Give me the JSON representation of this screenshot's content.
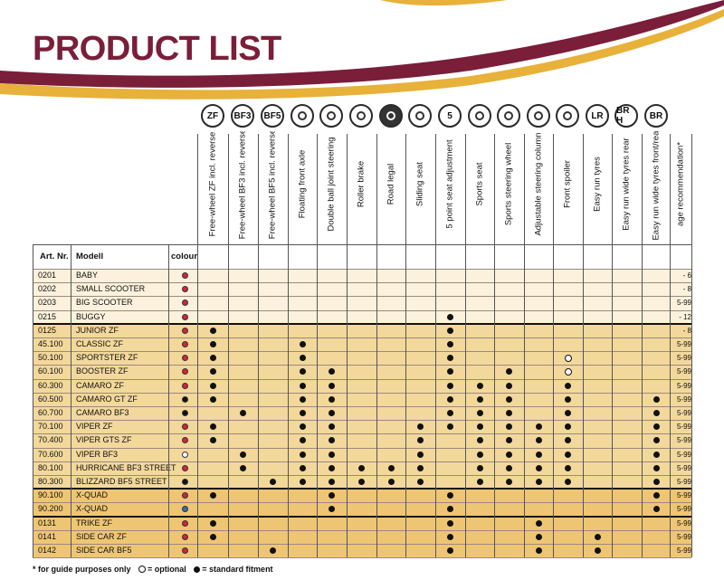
{
  "title": "PRODUCT LIST",
  "colors": {
    "maroon": "#7a1e3a",
    "gold": "#e7b13a",
    "band_light": "#fbf1dc",
    "band_mid": "#f3d89c",
    "band_dark": "#eec673",
    "red": "#d5233a",
    "blue": "#2f6fb6"
  },
  "header_labels": {
    "art_nr": "Art. Nr.",
    "modell": "Modell",
    "colour": "colour"
  },
  "icons": [
    "ZF",
    "BF3",
    "BF5",
    "floating-axle-icon",
    "double-ball-steering-icon",
    "roller-brake-icon",
    "road-icon",
    "sliding-seat-icon",
    "5",
    "sports-seat-icon",
    "steering-wheel-icon",
    "adjustable-column-icon",
    "front-spoiler-icon",
    "LR",
    "BR H",
    "BR"
  ],
  "features": [
    "Free-wheel ZF incl. reverse",
    "Free-wheel BF3 incl. reverse",
    "Free-wheel BF5 incl. reverse",
    "Floating front axle",
    "Double ball joint steering",
    "Roller brake",
    "Road legal",
    "Sliding seat",
    "5 point seat adjustment",
    "Sports seat",
    "Sports steering wheel",
    "Adjustable steering column",
    "Front spoiler",
    "Easy run tyres",
    "Easy run wide tyres rear",
    "Easy run wide tyres front/rear",
    "age recommendation*"
  ],
  "rows": [
    {
      "art": "0201",
      "model": "BABY",
      "colour": "red",
      "marks": "................",
      "age": "- 6",
      "band": "light"
    },
    {
      "art": "0202",
      "model": "SMALL SCOOTER",
      "colour": "red",
      "marks": "................",
      "age": "- 8",
      "band": "light"
    },
    {
      "art": "0203",
      "model": "BIG SCOOTER",
      "colour": "red",
      "marks": "................",
      "age": "5-99",
      "band": "light"
    },
    {
      "art": "0215",
      "model": "BUGGY",
      "colour": "red",
      "marks": "........x.......",
      "age": "- 12",
      "band": "light"
    },
    {
      "art": "0125",
      "model": "JUNIOR ZF",
      "colour": "red",
      "marks": "x.......x.......",
      "age": "- 8",
      "band": "mid"
    },
    {
      "art": "45.100",
      "model": "CLASSIC ZF",
      "colour": "red",
      "marks": "x..x....x.......",
      "age": "5-99",
      "band": "mid"
    },
    {
      "art": "50.100",
      "model": "SPORTSTER ZF",
      "colour": "red",
      "marks": "x..x....x...o...",
      "age": "5-99",
      "band": "mid"
    },
    {
      "art": "60.100",
      "model": "BOOSTER ZF",
      "colour": "red",
      "marks": "x..xx...x.x.o...",
      "age": "5-99",
      "band": "mid"
    },
    {
      "art": "60.300",
      "model": "CAMARO ZF",
      "colour": "red",
      "marks": "x..xx...xxx.x...",
      "age": "5-99",
      "band": "mid"
    },
    {
      "art": "60.500",
      "model": "CAMARO GT ZF",
      "colour": "black",
      "marks": "x..xx...xxx.x..x",
      "age": "5-99",
      "band": "mid"
    },
    {
      "art": "60.700",
      "model": "CAMARO BF3",
      "colour": "black",
      "marks": ".x.xx...xxx.x..x",
      "age": "5-99",
      "band": "mid"
    },
    {
      "art": "70.100",
      "model": "VIPER ZF",
      "colour": "red",
      "marks": "x..xx..xxxxxx..x",
      "age": "5-99",
      "band": "mid"
    },
    {
      "art": "70.400",
      "model": "VIPER GTS ZF",
      "colour": "red",
      "marks": "x..xx..x.xxxx..x",
      "age": "5-99",
      "band": "mid"
    },
    {
      "art": "70.600",
      "model": "VIPER BF3",
      "colour": "white",
      "marks": ".x.xx..x.xxxx..x",
      "age": "5-99",
      "band": "mid"
    },
    {
      "art": "80.100",
      "model": "HURRICANE BF3 STREET",
      "colour": "red",
      "marks": ".x.xxxxx.xxxx..x",
      "age": "5-99",
      "band": "mid"
    },
    {
      "art": "80.300",
      "model": "BLIZZARD BF5 STREET",
      "colour": "black",
      "marks": "..xxxxxx.xxxx..x",
      "age": "5-99",
      "band": "mid"
    },
    {
      "art": "90.100",
      "model": "X-QUAD",
      "colour": "red",
      "marks": "x...x...x......x",
      "age": "5-99",
      "band": "dark"
    },
    {
      "art": "90.200",
      "model": "X-QUAD",
      "colour": "blue",
      "marks": "....x...x......x",
      "age": "5-99",
      "band": "dark"
    },
    {
      "art": "0131",
      "model": "TRIKE ZF",
      "colour": "red",
      "marks": "x.......x..x....",
      "age": "5-99",
      "band": "gold"
    },
    {
      "art": "0141",
      "model": "SIDE CAR ZF",
      "colour": "red",
      "marks": "x.......x..x.x..",
      "age": "5-99",
      "band": "gold"
    },
    {
      "art": "0142",
      "model": "SIDE CAR BF5",
      "colour": "red",
      "marks": "..x.....x..x.x..",
      "age": "5-99",
      "band": "gold"
    }
  ],
  "footnote": {
    "guide": "* for guide purposes only",
    "optional": "= optional",
    "standard": "= standard fitment"
  }
}
